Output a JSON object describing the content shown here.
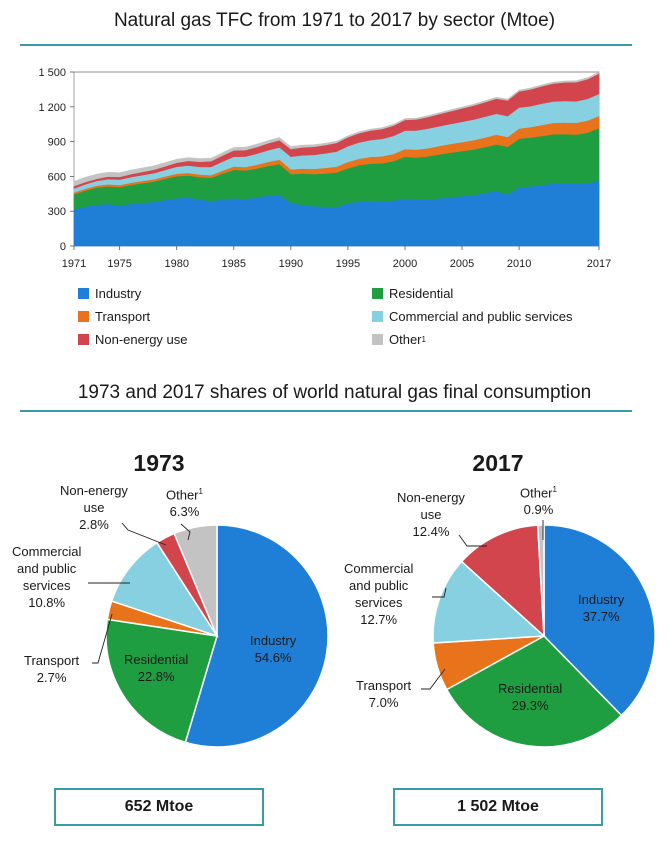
{
  "area_chart": {
    "title": "Natural gas TFC from 1971 to 2017 by sector (Mtoe)"
  },
  "legend": [
    {
      "name": "Industry",
      "sup": "",
      "color": "#1f7fd6"
    },
    {
      "name": "Residential",
      "sup": "",
      "color": "#1f9e41"
    },
    {
      "name": "Transport",
      "sup": "",
      "color": "#e8731a"
    },
    {
      "name": "Commercial and public services",
      "sup": "",
      "color": "#86d0e1"
    },
    {
      "name": "Non-energy use",
      "sup": "",
      "color": "#d3454c"
    },
    {
      "name": "Other",
      "sup": "1",
      "color": "#c3c3c3"
    }
  ],
  "pies": {
    "title": "1973 and 2017 shares of world natural gas final consumption",
    "p1973": {
      "year": "1973",
      "total": "652 Mtoe",
      "labels": {
        "industry": [
          "Industry",
          "54.6%"
        ],
        "residential": [
          "Residential",
          "22.8%"
        ],
        "transport": [
          "Transport",
          "2.7%"
        ],
        "commercial": [
          "Commercial",
          "and public",
          "services",
          "10.8%"
        ],
        "nonenergy": [
          "Non-energy",
          "use",
          "2.8%"
        ],
        "other": [
          "Other",
          "6.3%"
        ]
      }
    },
    "p2017": {
      "year": "2017",
      "total": "1 502 Mtoe",
      "labels": {
        "industry": [
          "Industry",
          "37.7%"
        ],
        "residential": [
          "Residential",
          "29.3%"
        ],
        "transport": [
          "Transport",
          "7.0%"
        ],
        "commercial": [
          "Commercial",
          "and public",
          "services",
          "12.7%"
        ],
        "nonenergy": [
          "Non-energy",
          "use",
          "12.4%"
        ],
        "other": [
          "Other",
          "0.9%"
        ]
      }
    }
  },
  "chart_data": [
    {
      "type": "area",
      "title": "Natural gas TFC from 1971 to 2017 by sector (Mtoe)",
      "ylim": [
        0,
        1500
      ],
      "yticks": [
        "0",
        "300",
        "600",
        "900",
        "1 200",
        "1 500"
      ],
      "xticks": [
        "1971",
        "1975",
        "1980",
        "1985",
        "1990",
        "1995",
        "2000",
        "2005",
        "2010",
        "2017"
      ],
      "x": [
        1971,
        1972,
        1973,
        1974,
        1975,
        1976,
        1977,
        1978,
        1979,
        1980,
        1981,
        1982,
        1983,
        1984,
        1985,
        1986,
        1987,
        1988,
        1989,
        1990,
        1991,
        1992,
        1993,
        1994,
        1995,
        1996,
        1997,
        1998,
        1999,
        2000,
        2001,
        2002,
        2003,
        2004,
        2005,
        2006,
        2007,
        2008,
        2009,
        2010,
        2011,
        2012,
        2013,
        2014,
        2015,
        2016,
        2017
      ],
      "stacked": true,
      "series": [
        {
          "name": "Industry",
          "values": [
            315,
            340,
            356,
            362,
            350,
            362,
            372,
            380,
            398,
            412,
            418,
            402,
            388,
            402,
            412,
            405,
            418,
            435,
            445,
            370,
            355,
            342,
            340,
            338,
            370,
            382,
            390,
            385,
            392,
            410,
            398,
            402,
            410,
            420,
            430,
            440,
            458,
            475,
            445,
            505,
            515,
            528,
            538,
            540,
            535,
            538,
            566
          ]
        },
        {
          "name": "Residential",
          "values": [
            130,
            138,
            148,
            152,
            158,
            165,
            170,
            175,
            182,
            190,
            190,
            192,
            200,
            222,
            245,
            246,
            250,
            255,
            262,
            250,
            270,
            278,
            285,
            296,
            300,
            315,
            320,
            328,
            340,
            360,
            365,
            370,
            380,
            385,
            388,
            392,
            395,
            400,
            410,
            420,
            420,
            420,
            425,
            425,
            425,
            440,
            450
          ]
        },
        {
          "name": "Transport",
          "values": [
            16,
            16,
            17,
            18,
            18,
            19,
            19,
            20,
            20,
            21,
            22,
            22,
            23,
            25,
            28,
            30,
            32,
            35,
            38,
            40,
            42,
            45,
            48,
            50,
            55,
            56,
            58,
            60,
            62,
            65,
            68,
            70,
            72,
            75,
            78,
            80,
            82,
            85,
            85,
            88,
            90,
            95,
            98,
            100,
            102,
            104,
            105
          ]
        },
        {
          "name": "Commercial and public services",
          "values": [
            35,
            38,
            40,
            44,
            46,
            48,
            50,
            53,
            56,
            60,
            64,
            66,
            70,
            78,
            85,
            90,
            95,
            100,
            105,
            110,
            115,
            120,
            125,
            130,
            135,
            140,
            145,
            150,
            155,
            160,
            165,
            170,
            170,
            172,
            175,
            178,
            180,
            180,
            180,
            180,
            180,
            185,
            185,
            185,
            185,
            187,
            190
          ]
        },
        {
          "name": "Non-energy use",
          "values": [
            20,
            20,
            18,
            22,
            24,
            26,
            28,
            30,
            32,
            35,
            40,
            45,
            50,
            52,
            54,
            56,
            58,
            60,
            62,
            65,
            68,
            70,
            72,
            75,
            78,
            80,
            83,
            86,
            89,
            92,
            95,
            100,
            105,
            110,
            115,
            120,
            125,
            130,
            135,
            140,
            145,
            150,
            155,
            160,
            165,
            170,
            175
          ]
        },
        {
          "name": "Other",
          "values": [
            41,
            41,
            41,
            38,
            36,
            35,
            34,
            33,
            32,
            30,
            28,
            27,
            26,
            25,
            25,
            25,
            25,
            24,
            24,
            22,
            20,
            18,
            16,
            14,
            12,
            12,
            12,
            12,
            12,
            12,
            12,
            12,
            12,
            12,
            12,
            12,
            12,
            12,
            12,
            12,
            12,
            12,
            12,
            12,
            13,
            13,
            13
          ]
        }
      ]
    },
    {
      "type": "pie",
      "title": "1973",
      "total": "652 Mtoe",
      "slices": [
        {
          "name": "Industry",
          "value": 54.6
        },
        {
          "name": "Residential",
          "value": 22.8
        },
        {
          "name": "Transport",
          "value": 2.7
        },
        {
          "name": "Commercial and public services",
          "value": 10.8
        },
        {
          "name": "Non-energy use",
          "value": 2.8
        },
        {
          "name": "Other",
          "value": 6.3
        }
      ]
    },
    {
      "type": "pie",
      "title": "2017",
      "total": "1 502 Mtoe",
      "slices": [
        {
          "name": "Industry",
          "value": 37.7
        },
        {
          "name": "Residential",
          "value": 29.3
        },
        {
          "name": "Transport",
          "value": 7.0
        },
        {
          "name": "Commercial and public services",
          "value": 12.7
        },
        {
          "name": "Non-energy use",
          "value": 12.4
        },
        {
          "name": "Other",
          "value": 0.9
        }
      ]
    }
  ]
}
